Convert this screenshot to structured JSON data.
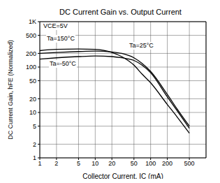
{
  "chart_data": {
    "type": "line",
    "title": "DC Current Gain vs. Output Current",
    "x_label": "Collector Current, IC (mA)",
    "y_label": "DC Current Gain, hFE (Normalized)",
    "annotations": [
      "VCE=5V",
      "Ta=150°C",
      "Ta=25°C",
      "Ta=-50°C"
    ],
    "log": true,
    "grid": true,
    "x": [
      1,
      2,
      5,
      10,
      20,
      30,
      50,
      70,
      100,
      200,
      300,
      500
    ],
    "series": [
      {
        "name": "Ta=150°C",
        "color": "#000000",
        "values": [
          230,
          245,
          250,
          245,
          210,
          170,
          110,
          70,
          45,
          15,
          8,
          3.5
        ]
      },
      {
        "name": "Ta=25°C",
        "color": "#000000",
        "values": [
          200,
          210,
          220,
          225,
          215,
          200,
          160,
          120,
          80,
          25,
          12,
          5
        ]
      },
      {
        "name": "Ta=-50°C",
        "color": "#000000",
        "values": [
          150,
          160,
          170,
          175,
          170,
          160,
          140,
          110,
          75,
          22,
          11,
          4.5
        ]
      }
    ],
    "xlim": [
      1,
      1000
    ],
    "ylim": [
      1,
      1000
    ],
    "xticks": [
      1,
      2,
      5,
      10,
      20,
      50,
      100,
      200,
      500
    ],
    "yticks": [
      1,
      2,
      5,
      10,
      20,
      50,
      100,
      200,
      500,
      {
        "value": 1000,
        "label": "1K"
      }
    ]
  }
}
